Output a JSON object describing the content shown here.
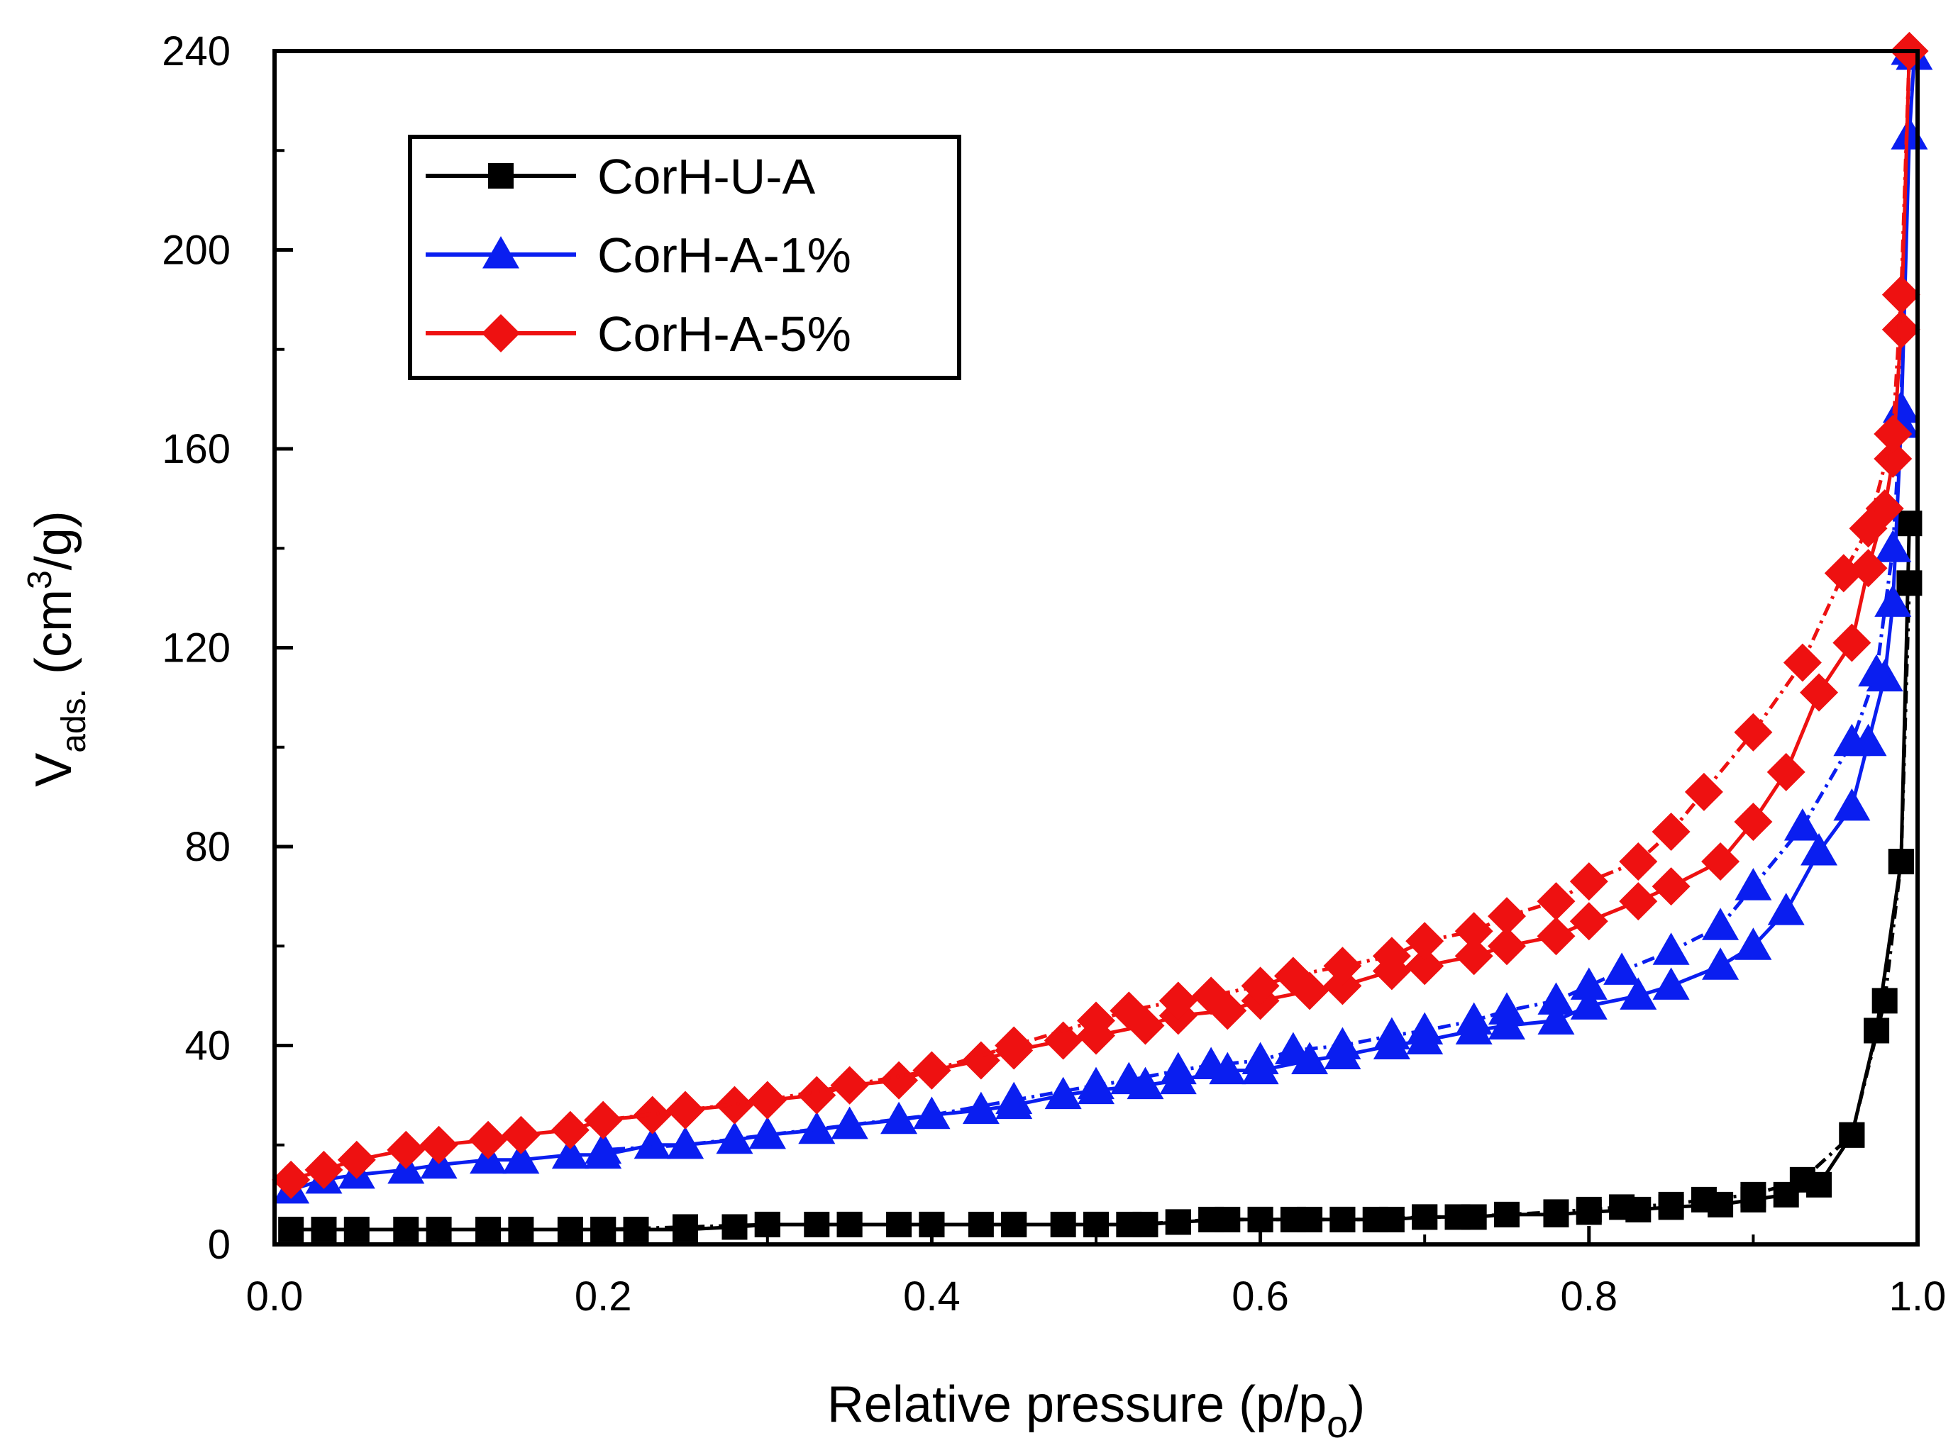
{
  "chart_data": {
    "type": "scatter",
    "title": "",
    "xlabel": {
      "main": "Relative pressure (p/p",
      "subscript": "o",
      "close": ")"
    },
    "ylabel": {
      "main": "V",
      "subscript": "ads.",
      "unit_open": " (cm",
      "superscript": "3",
      "unit_close": "/g)"
    },
    "xlim": [
      0.0,
      1.0
    ],
    "ylim": [
      0,
      240
    ],
    "x_ticks": [
      {
        "value": 0.0,
        "label": "0.0"
      },
      {
        "value": 0.2,
        "label": "0.2"
      },
      {
        "value": 0.4,
        "label": "0.4"
      },
      {
        "value": 0.6,
        "label": "0.6"
      },
      {
        "value": 0.8,
        "label": "0.8"
      },
      {
        "value": 1.0,
        "label": "1.0"
      }
    ],
    "y_ticks": [
      {
        "value": 0,
        "label": "0"
      },
      {
        "value": 40,
        "label": "40"
      },
      {
        "value": 80,
        "label": "80"
      },
      {
        "value": 120,
        "label": "120"
      },
      {
        "value": 160,
        "label": "160"
      },
      {
        "value": 200,
        "label": "200"
      },
      {
        "value": 240,
        "label": "240"
      }
    ],
    "legend_position": "top-left",
    "series": [
      {
        "name": "CorH-U-A",
        "color": "#000000",
        "marker": "square",
        "adsorption": [
          [
            0.01,
            3
          ],
          [
            0.03,
            3
          ],
          [
            0.05,
            3
          ],
          [
            0.08,
            3
          ],
          [
            0.1,
            3
          ],
          [
            0.13,
            3
          ],
          [
            0.15,
            3
          ],
          [
            0.18,
            3
          ],
          [
            0.2,
            3
          ],
          [
            0.22,
            3
          ],
          [
            0.25,
            3
          ],
          [
            0.28,
            3.5
          ],
          [
            0.3,
            4
          ],
          [
            0.33,
            4
          ],
          [
            0.35,
            4
          ],
          [
            0.38,
            4
          ],
          [
            0.4,
            4
          ],
          [
            0.43,
            4
          ],
          [
            0.45,
            4
          ],
          [
            0.48,
            4
          ],
          [
            0.5,
            4
          ],
          [
            0.53,
            4
          ],
          [
            0.55,
            4.5
          ],
          [
            0.58,
            5
          ],
          [
            0.6,
            5
          ],
          [
            0.63,
            5
          ],
          [
            0.65,
            5
          ],
          [
            0.68,
            5
          ],
          [
            0.7,
            5.5
          ],
          [
            0.73,
            5.5
          ],
          [
            0.75,
            6
          ],
          [
            0.78,
            6
          ],
          [
            0.8,
            6.5
          ],
          [
            0.83,
            7
          ],
          [
            0.85,
            7.5
          ],
          [
            0.88,
            8
          ],
          [
            0.9,
            9
          ],
          [
            0.92,
            10
          ],
          [
            0.94,
            12
          ],
          [
            0.96,
            22
          ],
          [
            0.975,
            43
          ],
          [
            0.99,
            77
          ],
          [
            0.995,
            145
          ]
        ],
        "desorption": [
          [
            0.995,
            133
          ],
          [
            0.99,
            77
          ],
          [
            0.98,
            49
          ],
          [
            0.96,
            22
          ],
          [
            0.93,
            13
          ],
          [
            0.9,
            10
          ],
          [
            0.87,
            9
          ],
          [
            0.85,
            8
          ],
          [
            0.82,
            7.5
          ],
          [
            0.8,
            7
          ],
          [
            0.78,
            6.5
          ],
          [
            0.75,
            6
          ],
          [
            0.72,
            5.5
          ],
          [
            0.7,
            5.5
          ],
          [
            0.67,
            5
          ],
          [
            0.65,
            5
          ],
          [
            0.62,
            5
          ],
          [
            0.6,
            5
          ],
          [
            0.57,
            5
          ],
          [
            0.55,
            4.5
          ],
          [
            0.52,
            4
          ],
          [
            0.5,
            4
          ],
          [
            0.45,
            4
          ],
          [
            0.4,
            4
          ],
          [
            0.35,
            4
          ],
          [
            0.3,
            4
          ],
          [
            0.25,
            3.5
          ],
          [
            0.2,
            3
          ]
        ]
      },
      {
        "name": "CorH-A-1%",
        "color": "#0a1ef0",
        "marker": "triangle",
        "adsorption": [
          [
            0.01,
            11
          ],
          [
            0.03,
            13
          ],
          [
            0.05,
            14
          ],
          [
            0.08,
            15
          ],
          [
            0.1,
            16
          ],
          [
            0.13,
            17
          ],
          [
            0.15,
            17
          ],
          [
            0.18,
            18
          ],
          [
            0.2,
            18
          ],
          [
            0.23,
            20
          ],
          [
            0.25,
            20
          ],
          [
            0.28,
            21
          ],
          [
            0.3,
            22
          ],
          [
            0.33,
            23
          ],
          [
            0.35,
            24
          ],
          [
            0.38,
            25
          ],
          [
            0.4,
            26
          ],
          [
            0.43,
            27
          ],
          [
            0.45,
            28
          ],
          [
            0.48,
            30
          ],
          [
            0.5,
            31
          ],
          [
            0.53,
            32
          ],
          [
            0.55,
            33
          ],
          [
            0.58,
            35
          ],
          [
            0.6,
            35
          ],
          [
            0.63,
            37
          ],
          [
            0.65,
            38
          ],
          [
            0.68,
            40
          ],
          [
            0.7,
            41
          ],
          [
            0.73,
            43
          ],
          [
            0.75,
            44
          ],
          [
            0.78,
            45
          ],
          [
            0.8,
            48
          ],
          [
            0.83,
            50
          ],
          [
            0.85,
            52
          ],
          [
            0.88,
            56
          ],
          [
            0.9,
            60
          ],
          [
            0.92,
            67
          ],
          [
            0.94,
            79
          ],
          [
            0.96,
            88
          ],
          [
            0.97,
            101
          ],
          [
            0.98,
            114
          ],
          [
            0.985,
            129
          ],
          [
            0.99,
            165
          ],
          [
            0.995,
            223
          ],
          [
            0.998,
            239
          ]
        ],
        "desorption": [
          [
            0.995,
            240
          ],
          [
            0.99,
            168
          ],
          [
            0.985,
            140
          ],
          [
            0.975,
            115
          ],
          [
            0.96,
            101
          ],
          [
            0.93,
            84
          ],
          [
            0.9,
            72
          ],
          [
            0.88,
            64
          ],
          [
            0.85,
            59
          ],
          [
            0.82,
            55
          ],
          [
            0.8,
            52
          ],
          [
            0.78,
            49
          ],
          [
            0.75,
            47
          ],
          [
            0.73,
            45
          ],
          [
            0.7,
            43
          ],
          [
            0.68,
            42
          ],
          [
            0.65,
            40
          ],
          [
            0.62,
            39
          ],
          [
            0.6,
            37
          ],
          [
            0.57,
            36
          ],
          [
            0.55,
            35
          ],
          [
            0.52,
            33
          ],
          [
            0.5,
            32
          ],
          [
            0.45,
            29
          ],
          [
            0.4,
            26
          ],
          [
            0.35,
            24
          ],
          [
            0.3,
            22
          ],
          [
            0.25,
            20
          ],
          [
            0.2,
            19
          ]
        ]
      },
      {
        "name": "CorH-A-5%",
        "color": "#ee1111",
        "marker": "diamond",
        "adsorption": [
          [
            0.01,
            13
          ],
          [
            0.03,
            15
          ],
          [
            0.05,
            17
          ],
          [
            0.08,
            19
          ],
          [
            0.1,
            20
          ],
          [
            0.13,
            21
          ],
          [
            0.15,
            22
          ],
          [
            0.18,
            23
          ],
          [
            0.2,
            25
          ],
          [
            0.23,
            26
          ],
          [
            0.25,
            27
          ],
          [
            0.28,
            28
          ],
          [
            0.3,
            29
          ],
          [
            0.33,
            30
          ],
          [
            0.35,
            32
          ],
          [
            0.38,
            33
          ],
          [
            0.4,
            35
          ],
          [
            0.43,
            37
          ],
          [
            0.45,
            39
          ],
          [
            0.48,
            41
          ],
          [
            0.5,
            42
          ],
          [
            0.53,
            44
          ],
          [
            0.55,
            46
          ],
          [
            0.58,
            47
          ],
          [
            0.6,
            49
          ],
          [
            0.63,
            51
          ],
          [
            0.65,
            52
          ],
          [
            0.68,
            55
          ],
          [
            0.7,
            56
          ],
          [
            0.73,
            58
          ],
          [
            0.75,
            60
          ],
          [
            0.78,
            62
          ],
          [
            0.8,
            65
          ],
          [
            0.83,
            69
          ],
          [
            0.85,
            72
          ],
          [
            0.88,
            77
          ],
          [
            0.9,
            85
          ],
          [
            0.92,
            95
          ],
          [
            0.94,
            111
          ],
          [
            0.96,
            121
          ],
          [
            0.97,
            136
          ],
          [
            0.98,
            148
          ],
          [
            0.985,
            158
          ],
          [
            0.99,
            184
          ],
          [
            0.995,
            240
          ]
        ],
        "desorption": [
          [
            0.995,
            240
          ],
          [
            0.99,
            191
          ],
          [
            0.985,
            163
          ],
          [
            0.97,
            144
          ],
          [
            0.955,
            135
          ],
          [
            0.93,
            117
          ],
          [
            0.9,
            103
          ],
          [
            0.87,
            91
          ],
          [
            0.85,
            83
          ],
          [
            0.83,
            77
          ],
          [
            0.8,
            73
          ],
          [
            0.78,
            69
          ],
          [
            0.75,
            66
          ],
          [
            0.73,
            63
          ],
          [
            0.7,
            61
          ],
          [
            0.68,
            58
          ],
          [
            0.65,
            56
          ],
          [
            0.62,
            54
          ],
          [
            0.6,
            52
          ],
          [
            0.57,
            50
          ],
          [
            0.55,
            49
          ],
          [
            0.52,
            47
          ],
          [
            0.5,
            45
          ],
          [
            0.45,
            40
          ],
          [
            0.4,
            35
          ],
          [
            0.35,
            32
          ],
          [
            0.3,
            29
          ],
          [
            0.25,
            27
          ],
          [
            0.2,
            25
          ]
        ]
      }
    ]
  }
}
